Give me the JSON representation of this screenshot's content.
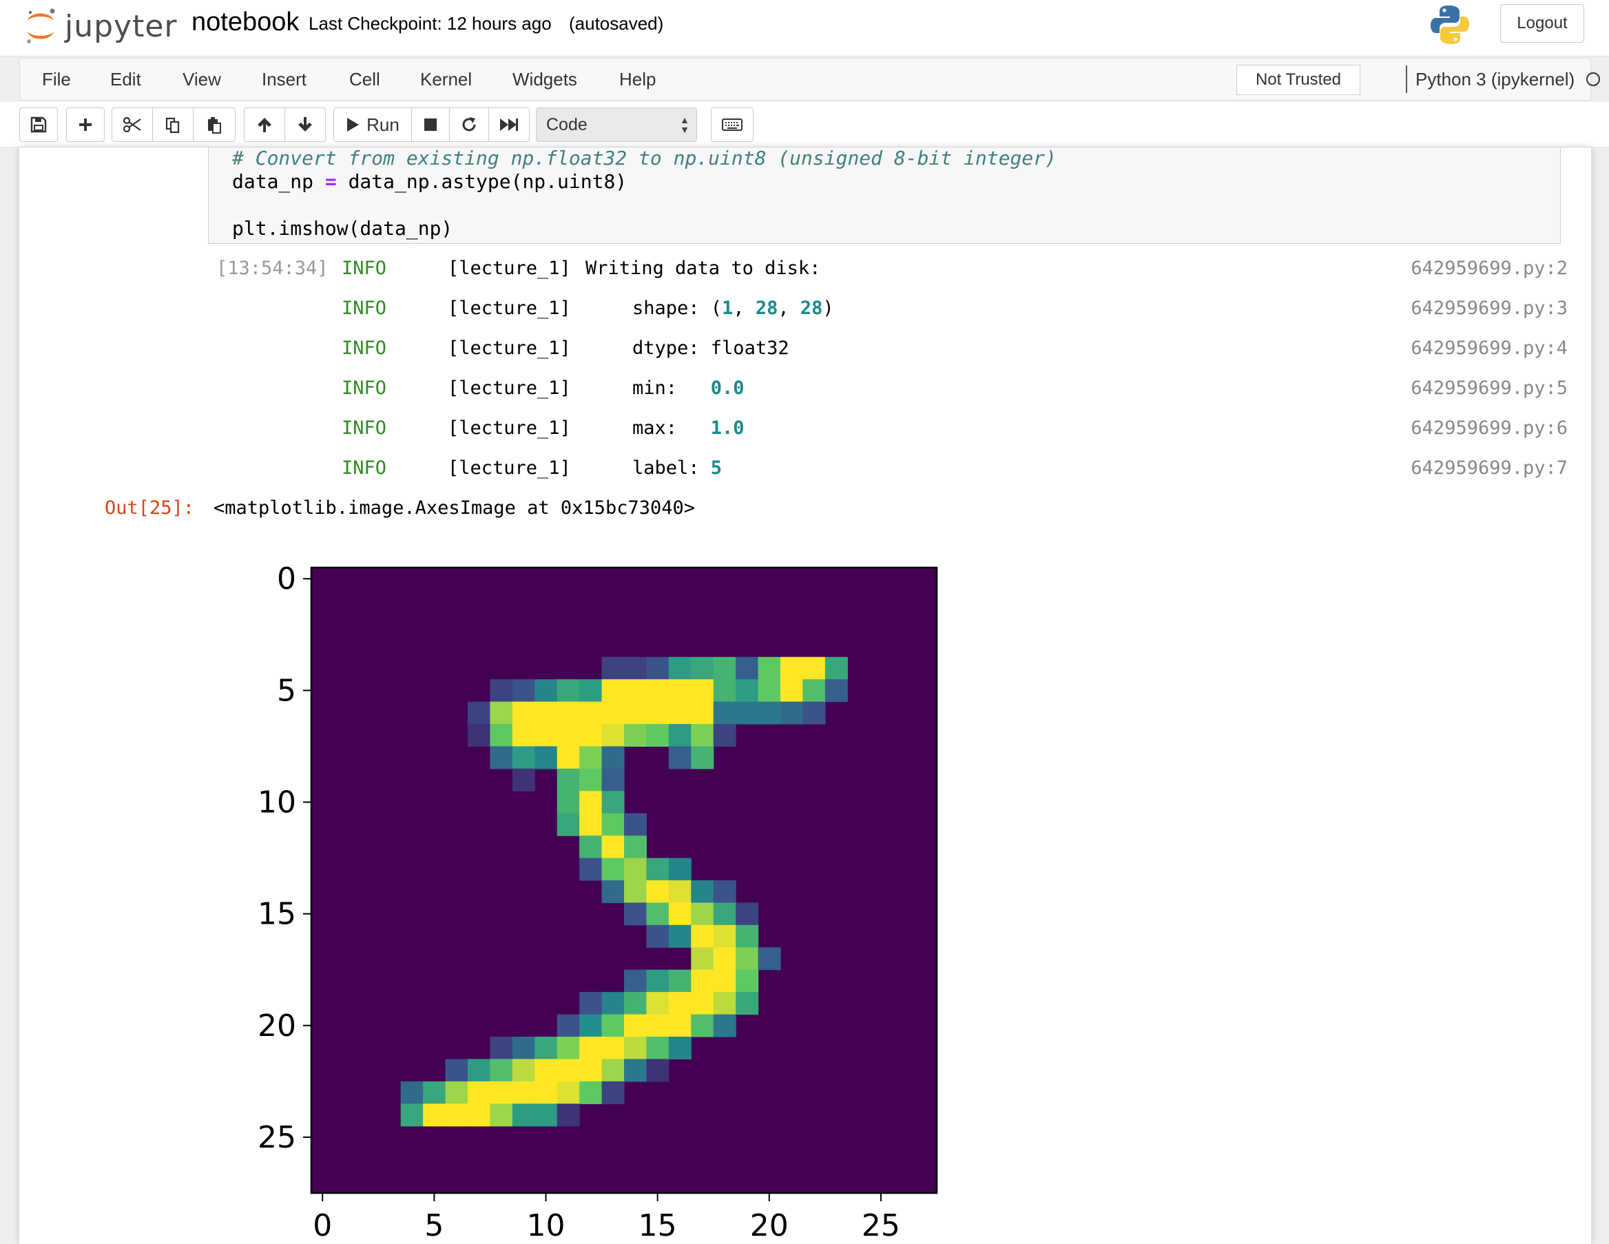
{
  "header": {
    "logo_text": "jupyter",
    "notebook_name": "notebook",
    "checkpoint": "Last Checkpoint: 12 hours ago",
    "autosave": "(autosaved)",
    "logout_label": "Logout"
  },
  "menubar": {
    "items": [
      "File",
      "Edit",
      "View",
      "Insert",
      "Cell",
      "Kernel",
      "Widgets",
      "Help"
    ],
    "trust_label": "Not Trusted",
    "kernel_name": "Python 3 (ipykernel)"
  },
  "toolbar": {
    "run_label": "Run",
    "cell_type": "Code",
    "icons": [
      "save-icon",
      "plus-icon",
      "cut-icon",
      "copy-icon",
      "paste-icon",
      "arrow-up-icon",
      "arrow-down-icon",
      "play-icon",
      "stop-icon",
      "restart-icon",
      "fast-forward-icon",
      "keyboard-icon"
    ]
  },
  "code_cell": {
    "comment": "# Convert from existing np.float32 to np.uint8 (unsigned 8-bit integer)",
    "line2_left": "data_np ",
    "line2_op": "=",
    "line2_right": " data_np.astype(np.uint8)",
    "line3": "plt.imshow(data_np)"
  },
  "log": {
    "timestamp": "[13:54:34]",
    "level": "INFO",
    "source": "[lecture_1]",
    "messages": {
      "writing": "Writing data to disk:",
      "shape_key": "shape: ",
      "shape_open": "(",
      "shape_1": "1",
      "shape_comma1": ", ",
      "shape_2": "28",
      "shape_comma2": ", ",
      "shape_3": "28",
      "shape_close": ")",
      "dtype_key": "dtype: ",
      "dtype_val": "float32",
      "min_key": "min:   ",
      "min_val": "0.0",
      "max_key": "max:   ",
      "max_val": "1.0",
      "label_key": "label: ",
      "label_val": "5"
    },
    "refs": [
      "642959699.py:2",
      "642959699.py:3",
      "642959699.py:4",
      "642959699.py:5",
      "642959699.py:6",
      "642959699.py:7"
    ]
  },
  "output": {
    "prompt": "Out[25]:",
    "value": "<matplotlib.image.AxesImage at 0x15bc73040>"
  },
  "chart_data": {
    "type": "heatmap",
    "colormap": "viridis",
    "rows": 28,
    "cols": 28,
    "x_ticks": [
      0,
      5,
      10,
      15,
      20,
      25
    ],
    "y_ticks": [
      0,
      5,
      10,
      15,
      20,
      25
    ],
    "xlim": [
      -0.5,
      27.5
    ],
    "ylim": [
      27.5,
      -0.5
    ],
    "grid": false,
    "cells": [
      [
        4,
        13,
        0.2
      ],
      [
        4,
        14,
        0.2
      ],
      [
        4,
        15,
        0.25
      ],
      [
        4,
        16,
        0.55
      ],
      [
        4,
        17,
        0.6
      ],
      [
        4,
        18,
        0.65
      ],
      [
        4,
        19,
        0.3
      ],
      [
        4,
        20,
        0.75
      ],
      [
        4,
        21,
        1.0
      ],
      [
        4,
        22,
        1.0
      ],
      [
        4,
        23,
        0.6
      ],
      [
        5,
        8,
        0.2
      ],
      [
        5,
        9,
        0.25
      ],
      [
        5,
        10,
        0.45
      ],
      [
        5,
        11,
        0.6
      ],
      [
        5,
        12,
        0.55
      ],
      [
        5,
        13,
        1.0
      ],
      [
        5,
        14,
        1.0
      ],
      [
        5,
        15,
        1.0
      ],
      [
        5,
        16,
        1.0
      ],
      [
        5,
        17,
        1.0
      ],
      [
        5,
        18,
        0.65
      ],
      [
        5,
        19,
        0.55
      ],
      [
        5,
        20,
        0.75
      ],
      [
        5,
        21,
        1.0
      ],
      [
        5,
        22,
        0.7
      ],
      [
        5,
        23,
        0.3
      ],
      [
        6,
        7,
        0.2
      ],
      [
        6,
        8,
        0.85
      ],
      [
        6,
        9,
        1.0
      ],
      [
        6,
        10,
        1.0
      ],
      [
        6,
        11,
        1.0
      ],
      [
        6,
        12,
        1.0
      ],
      [
        6,
        13,
        1.0
      ],
      [
        6,
        14,
        1.0
      ],
      [
        6,
        15,
        1.0
      ],
      [
        6,
        16,
        1.0
      ],
      [
        6,
        17,
        1.0
      ],
      [
        6,
        18,
        0.4
      ],
      [
        6,
        19,
        0.4
      ],
      [
        6,
        20,
        0.4
      ],
      [
        6,
        21,
        0.35
      ],
      [
        6,
        22,
        0.25
      ],
      [
        7,
        7,
        0.15
      ],
      [
        7,
        8,
        0.75
      ],
      [
        7,
        9,
        1.0
      ],
      [
        7,
        10,
        1.0
      ],
      [
        7,
        11,
        1.0
      ],
      [
        7,
        12,
        1.0
      ],
      [
        7,
        13,
        0.95
      ],
      [
        7,
        14,
        0.8
      ],
      [
        7,
        15,
        0.75
      ],
      [
        7,
        16,
        0.55
      ],
      [
        7,
        17,
        0.8
      ],
      [
        7,
        18,
        0.2
      ],
      [
        8,
        8,
        0.35
      ],
      [
        8,
        9,
        0.55
      ],
      [
        8,
        10,
        0.45
      ],
      [
        8,
        11,
        1.0
      ],
      [
        8,
        12,
        0.8
      ],
      [
        8,
        13,
        0.35
      ],
      [
        8,
        16,
        0.3
      ],
      [
        8,
        17,
        0.65
      ],
      [
        9,
        9,
        0.15
      ],
      [
        9,
        11,
        0.65
      ],
      [
        9,
        12,
        0.75
      ],
      [
        9,
        13,
        0.3
      ],
      [
        10,
        11,
        0.65
      ],
      [
        10,
        12,
        1.0
      ],
      [
        10,
        13,
        0.6
      ],
      [
        11,
        11,
        0.6
      ],
      [
        11,
        12,
        1.0
      ],
      [
        11,
        13,
        0.75
      ],
      [
        11,
        14,
        0.25
      ],
      [
        12,
        12,
        0.65
      ],
      [
        12,
        13,
        1.0
      ],
      [
        12,
        14,
        0.7
      ],
      [
        13,
        12,
        0.25
      ],
      [
        13,
        13,
        0.75
      ],
      [
        13,
        14,
        0.85
      ],
      [
        13,
        15,
        0.6
      ],
      [
        13,
        16,
        0.45
      ],
      [
        14,
        13,
        0.35
      ],
      [
        14,
        14,
        0.85
      ],
      [
        14,
        15,
        1.0
      ],
      [
        14,
        16,
        0.95
      ],
      [
        14,
        17,
        0.45
      ],
      [
        14,
        18,
        0.25
      ],
      [
        15,
        14,
        0.25
      ],
      [
        15,
        15,
        0.7
      ],
      [
        15,
        16,
        1.0
      ],
      [
        15,
        17,
        0.85
      ],
      [
        15,
        18,
        0.6
      ],
      [
        15,
        19,
        0.2
      ],
      [
        16,
        15,
        0.25
      ],
      [
        16,
        16,
        0.45
      ],
      [
        16,
        17,
        1.0
      ],
      [
        16,
        18,
        0.95
      ],
      [
        16,
        19,
        0.65
      ],
      [
        17,
        17,
        0.9
      ],
      [
        17,
        18,
        1.0
      ],
      [
        17,
        19,
        0.8
      ],
      [
        17,
        20,
        0.3
      ],
      [
        18,
        14,
        0.3
      ],
      [
        18,
        15,
        0.55
      ],
      [
        18,
        16,
        0.65
      ],
      [
        18,
        17,
        1.0
      ],
      [
        18,
        18,
        1.0
      ],
      [
        18,
        19,
        0.75
      ],
      [
        19,
        12,
        0.25
      ],
      [
        19,
        13,
        0.45
      ],
      [
        19,
        14,
        0.65
      ],
      [
        19,
        15,
        0.95
      ],
      [
        19,
        16,
        1.0
      ],
      [
        19,
        17,
        1.0
      ],
      [
        19,
        18,
        0.9
      ],
      [
        19,
        19,
        0.6
      ],
      [
        20,
        11,
        0.25
      ],
      [
        20,
        12,
        0.5
      ],
      [
        20,
        13,
        0.75
      ],
      [
        20,
        14,
        1.0
      ],
      [
        20,
        15,
        1.0
      ],
      [
        20,
        16,
        1.0
      ],
      [
        20,
        17,
        0.7
      ],
      [
        20,
        18,
        0.4
      ],
      [
        21,
        8,
        0.2
      ],
      [
        21,
        9,
        0.35
      ],
      [
        21,
        10,
        0.6
      ],
      [
        21,
        11,
        0.8
      ],
      [
        21,
        12,
        1.0
      ],
      [
        21,
        13,
        1.0
      ],
      [
        21,
        14,
        0.9
      ],
      [
        21,
        15,
        0.7
      ],
      [
        21,
        16,
        0.45
      ],
      [
        22,
        6,
        0.25
      ],
      [
        22,
        7,
        0.55
      ],
      [
        22,
        8,
        0.7
      ],
      [
        22,
        9,
        0.9
      ],
      [
        22,
        10,
        1.0
      ],
      [
        22,
        11,
        1.0
      ],
      [
        22,
        12,
        1.0
      ],
      [
        22,
        13,
        0.85
      ],
      [
        22,
        14,
        0.4
      ],
      [
        22,
        15,
        0.15
      ],
      [
        23,
        4,
        0.35
      ],
      [
        23,
        5,
        0.6
      ],
      [
        23,
        6,
        0.85
      ],
      [
        23,
        7,
        1.0
      ],
      [
        23,
        8,
        1.0
      ],
      [
        23,
        9,
        1.0
      ],
      [
        23,
        10,
        1.0
      ],
      [
        23,
        11,
        0.95
      ],
      [
        23,
        12,
        0.75
      ],
      [
        23,
        13,
        0.2
      ],
      [
        24,
        4,
        0.6
      ],
      [
        24,
        5,
        1.0
      ],
      [
        24,
        6,
        1.0
      ],
      [
        24,
        7,
        1.0
      ],
      [
        24,
        8,
        0.85
      ],
      [
        24,
        9,
        0.55
      ],
      [
        24,
        10,
        0.55
      ],
      [
        24,
        11,
        0.15
      ]
    ]
  }
}
